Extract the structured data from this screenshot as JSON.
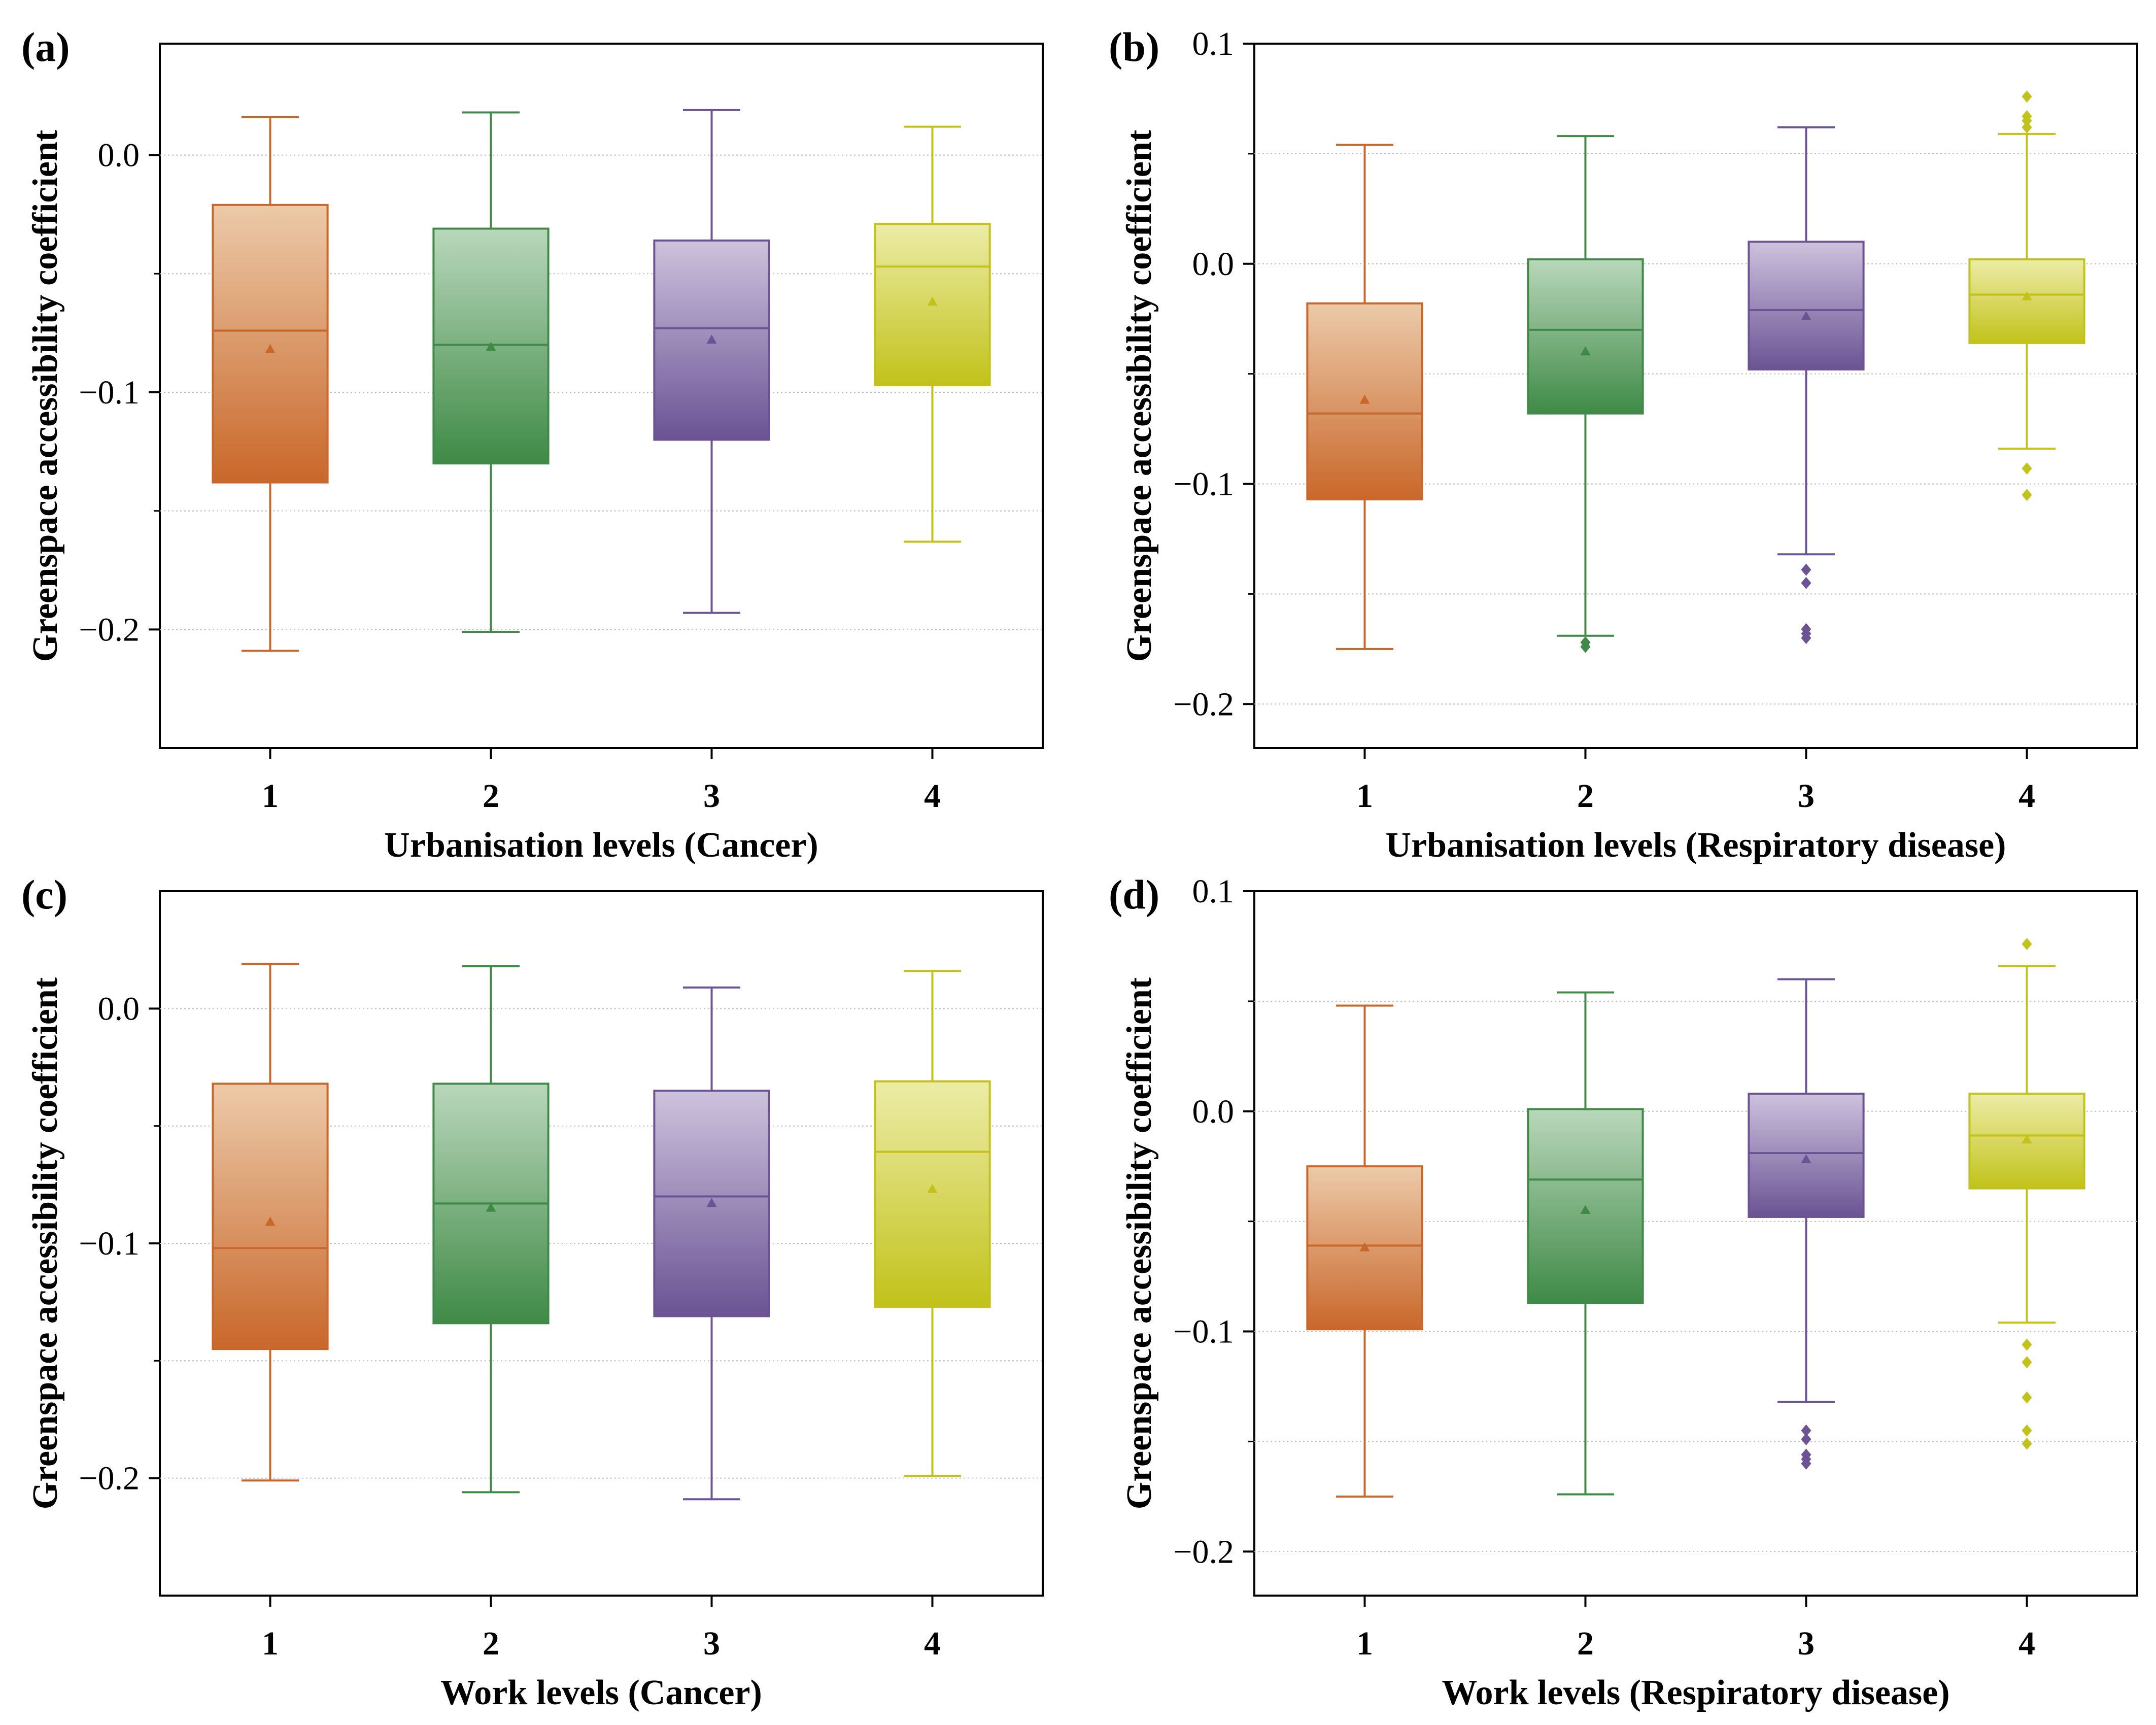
{
  "figure": {
    "y_title": "Greenspace accessibility coefficient"
  },
  "chart_data": [
    {
      "type": "box",
      "panel_label": "(a)",
      "xlabel": "Urbanisation levels (Cancer)",
      "ylabel": "Greenspace accessibility coefficient",
      "categories": [
        "1",
        "2",
        "3",
        "4"
      ],
      "ylim": [
        -0.25,
        0.047
      ],
      "yticks": [
        0.0,
        -0.1,
        -0.2
      ],
      "ytick_labels": [
        "0.0",
        "−0.1",
        "−0.2"
      ],
      "minor_ygrid": [
        0.0,
        -0.05,
        -0.1,
        -0.15,
        -0.2
      ],
      "colors": [
        "#c9672a",
        "#3f8a46",
        "#6b5394",
        "#c2c21a"
      ],
      "boxes": [
        {
          "whisker_low": -0.209,
          "q1": -0.138,
          "median": -0.074,
          "q3": -0.021,
          "whisker_high": 0.016,
          "mean": -0.082,
          "outliers": []
        },
        {
          "whisker_low": -0.201,
          "q1": -0.13,
          "median": -0.08,
          "q3": -0.031,
          "whisker_high": 0.018,
          "mean": -0.081,
          "outliers": []
        },
        {
          "whisker_low": -0.193,
          "q1": -0.12,
          "median": -0.073,
          "q3": -0.036,
          "whisker_high": 0.019,
          "mean": -0.078,
          "outliers": []
        },
        {
          "whisker_low": -0.163,
          "q1": -0.097,
          "median": -0.047,
          "q3": -0.029,
          "whisker_high": 0.012,
          "mean": -0.062,
          "outliers": []
        }
      ]
    },
    {
      "type": "box",
      "panel_label": "(b)",
      "xlabel": "Urbanisation levels (Respiratory disease)",
      "ylabel": "Greenspace accessibility coefficient",
      "categories": [
        "1",
        "2",
        "3",
        "4"
      ],
      "ylim": [
        -0.22,
        0.1
      ],
      "yticks": [
        0.1,
        0.0,
        -0.1,
        -0.2
      ],
      "ytick_labels": [
        "0.1",
        "0.0",
        "−0.1",
        "−0.2"
      ],
      "minor_ygrid": [
        0.05,
        0.0,
        -0.05,
        -0.1,
        -0.15,
        -0.2
      ],
      "colors": [
        "#c9672a",
        "#3f8a46",
        "#6b5394",
        "#c2c21a"
      ],
      "boxes": [
        {
          "whisker_low": -0.175,
          "q1": -0.107,
          "median": -0.068,
          "q3": -0.018,
          "whisker_high": 0.054,
          "mean": -0.062,
          "outliers": []
        },
        {
          "whisker_low": -0.169,
          "q1": -0.068,
          "median": -0.03,
          "q3": 0.002,
          "whisker_high": 0.058,
          "mean": -0.04,
          "outliers": [
            -0.172,
            -0.174
          ]
        },
        {
          "whisker_low": -0.132,
          "q1": -0.048,
          "median": -0.021,
          "q3": 0.01,
          "whisker_high": 0.062,
          "mean": -0.024,
          "outliers": [
            -0.139,
            -0.145,
            -0.166,
            -0.168,
            -0.17
          ]
        },
        {
          "whisker_low": -0.084,
          "q1": -0.036,
          "median": -0.014,
          "q3": 0.002,
          "whisker_high": 0.059,
          "mean": -0.015,
          "outliers": [
            -0.093,
            -0.105,
            0.062,
            0.065,
            0.067,
            0.076
          ]
        }
      ]
    },
    {
      "type": "box",
      "panel_label": "(c)",
      "xlabel": "Work levels (Cancer)",
      "ylabel": "Greenspace accessibility coefficient",
      "categories": [
        "1",
        "2",
        "3",
        "4"
      ],
      "ylim": [
        -0.25,
        0.05
      ],
      "yticks": [
        0.0,
        -0.1,
        -0.2
      ],
      "ytick_labels": [
        "0.0",
        "−0.1",
        "−0.2"
      ],
      "minor_ygrid": [
        0.0,
        -0.05,
        -0.1,
        -0.15,
        -0.2
      ],
      "colors": [
        "#c9672a",
        "#3f8a46",
        "#6b5394",
        "#c2c21a"
      ],
      "boxes": [
        {
          "whisker_low": -0.201,
          "q1": -0.145,
          "median": -0.102,
          "q3": -0.032,
          "whisker_high": 0.019,
          "mean": -0.091,
          "outliers": []
        },
        {
          "whisker_low": -0.206,
          "q1": -0.134,
          "median": -0.083,
          "q3": -0.032,
          "whisker_high": 0.018,
          "mean": -0.085,
          "outliers": []
        },
        {
          "whisker_low": -0.209,
          "q1": -0.131,
          "median": -0.08,
          "q3": -0.035,
          "whisker_high": 0.009,
          "mean": -0.083,
          "outliers": []
        },
        {
          "whisker_low": -0.199,
          "q1": -0.127,
          "median": -0.061,
          "q3": -0.031,
          "whisker_high": 0.016,
          "mean": -0.077,
          "outliers": []
        }
      ]
    },
    {
      "type": "box",
      "panel_label": "(d)",
      "xlabel": "Work levels (Respiratory disease)",
      "ylabel": "Greenspace accessibility coefficient",
      "categories": [
        "1",
        "2",
        "3",
        "4"
      ],
      "ylim": [
        -0.22,
        0.1
      ],
      "yticks": [
        0.1,
        0.0,
        -0.1,
        -0.2
      ],
      "ytick_labels": [
        "0.1",
        "0.0",
        "−0.1",
        "−0.2"
      ],
      "minor_ygrid": [
        0.05,
        0.0,
        -0.05,
        -0.1,
        -0.15,
        -0.2
      ],
      "colors": [
        "#c9672a",
        "#3f8a46",
        "#6b5394",
        "#c2c21a"
      ],
      "boxes": [
        {
          "whisker_low": -0.175,
          "q1": -0.099,
          "median": -0.061,
          "q3": -0.025,
          "whisker_high": 0.048,
          "mean": -0.062,
          "outliers": []
        },
        {
          "whisker_low": -0.174,
          "q1": -0.087,
          "median": -0.031,
          "q3": 0.001,
          "whisker_high": 0.054,
          "mean": -0.045,
          "outliers": []
        },
        {
          "whisker_low": -0.132,
          "q1": -0.048,
          "median": -0.019,
          "q3": 0.008,
          "whisker_high": 0.06,
          "mean": -0.022,
          "outliers": [
            -0.145,
            -0.149,
            -0.156,
            -0.158,
            -0.16
          ]
        },
        {
          "whisker_low": -0.096,
          "q1": -0.035,
          "median": -0.011,
          "q3": 0.008,
          "whisker_high": 0.066,
          "mean": -0.013,
          "outliers": [
            -0.106,
            -0.114,
            -0.13,
            -0.145,
            -0.151,
            0.076
          ]
        }
      ]
    }
  ]
}
